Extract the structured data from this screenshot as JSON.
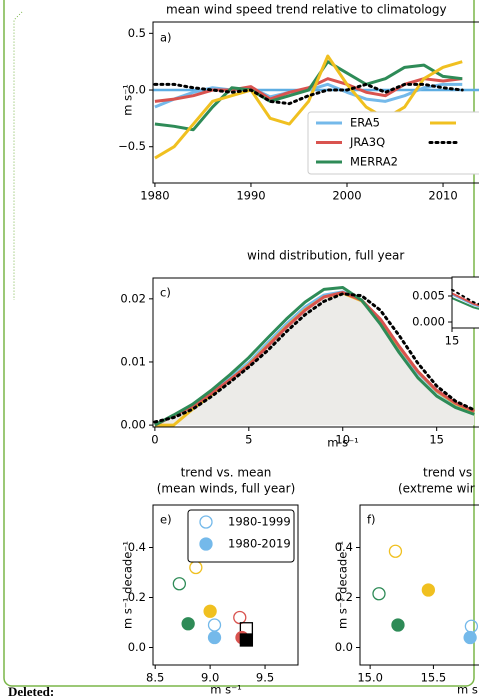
{
  "document": {
    "deleted_label": "Deleted:"
  },
  "chart_data": [
    {
      "type": "line",
      "title": [
        "mean wind speed trend relative to climatology"
      ],
      "panel_label": "a)",
      "ylabel": "m s⁻¹",
      "xlim": [
        1979.8,
        2020.2
      ],
      "ylim": [
        -0.82,
        0.6
      ],
      "xticks": [
        1980,
        1990,
        2000,
        2010
      ],
      "yticks": [
        0.5,
        {
          "value": 0,
          "label": "0.0"
        },
        {
          "value": -0.5,
          "label": "−0.5"
        }
      ],
      "hline": 0,
      "hline_color": "#5dade2",
      "x": [
        1980,
        1982,
        1984,
        1986,
        1988,
        1990,
        1992,
        1994,
        1996,
        1998,
        2000,
        2002,
        2004,
        2006,
        2008,
        2010,
        2012
      ],
      "series": [
        {
          "name": "ERA5",
          "color": "#74b9ea",
          "values": [
            -0.15,
            -0.08,
            -0.02,
            0.02,
            0.0,
            0.02,
            -0.06,
            -0.02,
            0.0,
            0.05,
            -0.02,
            -0.08,
            -0.1,
            -0.05,
            0.02,
            0.05,
            0.05
          ]
        },
        {
          "name": "JRA3Q",
          "color": "#d9534f",
          "values": [
            -0.1,
            -0.08,
            -0.05,
            0.0,
            0.0,
            0.03,
            -0.08,
            -0.02,
            0.02,
            0.1,
            0.05,
            -0.02,
            -0.05,
            0.05,
            0.1,
            0.08,
            0.1
          ]
        },
        {
          "name": "MERRA2",
          "color": "#2e8b57",
          "values": [
            -0.3,
            -0.32,
            -0.35,
            -0.15,
            0.02,
            0.0,
            -0.1,
            -0.05,
            0.0,
            0.25,
            0.15,
            0.05,
            0.1,
            0.2,
            0.22,
            0.12,
            0.1
          ]
        },
        {
          "color": "#f0c020",
          "values": [
            -0.6,
            -0.5,
            -0.3,
            -0.1,
            -0.05,
            0.0,
            -0.25,
            -0.3,
            -0.1,
            0.3,
            0.05,
            -0.15,
            -0.25,
            -0.15,
            0.1,
            0.2,
            0.25
          ]
        },
        {
          "color": "#000000",
          "dashed": true,
          "values": [
            0.05,
            0.05,
            0.02,
            0.0,
            -0.02,
            0.0,
            -0.1,
            -0.12,
            -0.05,
            0.0,
            0.0,
            0.05,
            -0.02,
            0.05,
            0.05,
            0.02,
            0.0
          ]
        }
      ]
    },
    {
      "type": "line",
      "title": [
        "wind distribution, full year"
      ],
      "panel_label": "c)",
      "xlabel": "m s⁻¹",
      "xlim": [
        -0.1,
        20.5
      ],
      "ylim": [
        -0.0003,
        0.0233
      ],
      "xticks": [
        0,
        5,
        10,
        15
      ],
      "yticks": [
        {
          "value": 0,
          "label": "0.00"
        },
        {
          "value": 0.01,
          "label": "0.01"
        },
        {
          "value": 0.02,
          "label": "0.02"
        }
      ],
      "x": [
        0,
        1,
        2,
        3,
        4,
        5,
        6,
        7,
        8,
        9,
        10,
        11,
        12,
        13,
        14,
        15,
        16,
        17
      ],
      "series": [
        {
          "color": "#ecebe8",
          "area": true,
          "values": [
            0.0,
            0.0015,
            0.003,
            0.005,
            0.0072,
            0.0095,
            0.0125,
            0.0155,
            0.0182,
            0.0203,
            0.021,
            0.0198,
            0.0168,
            0.0125,
            0.0085,
            0.0055,
            0.0035,
            0.0022
          ]
        },
        {
          "color": "#74b9ea",
          "values": [
            0.0,
            0.0015,
            0.0031,
            0.0052,
            0.0075,
            0.0099,
            0.013,
            0.016,
            0.0187,
            0.0206,
            0.0211,
            0.0197,
            0.0165,
            0.0122,
            0.0083,
            0.0053,
            0.0033,
            0.0021
          ]
        },
        {
          "color": "#f0c020",
          "values": [
            0.0,
            0.0,
            0.0025,
            0.0048,
            0.0072,
            0.0096,
            0.0126,
            0.0156,
            0.0183,
            0.0203,
            0.0209,
            0.0197,
            0.0166,
            0.0124,
            0.0085,
            0.0054,
            0.0034,
            0.0021
          ]
        },
        {
          "color": "#d9534f",
          "values": [
            0.0,
            0.0015,
            0.003,
            0.005,
            0.0072,
            0.0095,
            0.0125,
            0.0155,
            0.0182,
            0.0203,
            0.021,
            0.0198,
            0.0168,
            0.0125,
            0.0085,
            0.0055,
            0.0035,
            0.0022
          ]
        },
        {
          "color": "#2e8b57",
          "values": [
            0.0,
            0.0016,
            0.0033,
            0.0055,
            0.008,
            0.0107,
            0.0138,
            0.0168,
            0.0195,
            0.0215,
            0.0218,
            0.0198,
            0.016,
            0.0115,
            0.0075,
            0.0046,
            0.0028,
            0.0017
          ]
        },
        {
          "color": "#000000",
          "dashed": true,
          "values": [
            0.0005,
            0.0012,
            0.0025,
            0.0045,
            0.0068,
            0.0092,
            0.0118,
            0.0148,
            0.0175,
            0.0196,
            0.0208,
            0.0205,
            0.0182,
            0.0142,
            0.0098,
            0.0062,
            0.0038,
            0.0024
          ]
        }
      ]
    },
    {
      "type": "line",
      "xlim": [
        15,
        20
      ],
      "ylim": [
        -0.00115,
        0.00865
      ],
      "xticks": [
        15
      ],
      "yticks": [
        {
          "value": 0,
          "label": "0.000"
        },
        0.005
      ],
      "x": [
        15,
        16,
        17
      ],
      "series": [
        {
          "color": "#74b9ea",
          "values": [
            0.0053,
            0.0033,
            0.0021
          ]
        },
        {
          "color": "#d9534f",
          "values": [
            0.0055,
            0.0035,
            0.0022
          ]
        },
        {
          "color": "#2e8b57",
          "values": [
            0.0046,
            0.0028,
            0.0017
          ]
        },
        {
          "color": "#000000",
          "dashed": true,
          "values": [
            0.0062,
            0.0038,
            0.0024
          ]
        }
      ]
    },
    {
      "type": "scatter",
      "title": [
        "trend vs. mean",
        "(mean winds, full year)"
      ],
      "panel_label": "e)",
      "ylabel": "m s⁻¹ decade⁻¹",
      "xlabel": "m s⁻¹",
      "xlim": [
        8.48,
        9.8
      ],
      "ylim": [
        -0.07,
        0.57
      ],
      "xticks": [
        8.5,
        {
          "value": 9,
          "label": "9.0"
        },
        9.5
      ],
      "yticks": [
        {
          "value": 0,
          "label": "0.0"
        },
        0.2,
        0.4
      ],
      "legend_color": "#74b9ea",
      "series": [
        {
          "name": "1980-1999",
          "filled": false,
          "x": [
            8.72,
            8.87,
            9.04,
            9.27,
            9.33
          ],
          "values": [
            0.255,
            0.32,
            0.09,
            0.12,
            0.075
          ],
          "colors": [
            "#2e8b57",
            "#f0c020",
            "#74b9ea",
            "#d9534f",
            "#000000"
          ],
          "markers": [
            "circle",
            "circle",
            "circle",
            "circle",
            "square"
          ]
        },
        {
          "name": "1980-2019",
          "filled": true,
          "x": [
            8.8,
            9.0,
            9.04,
            9.29,
            9.33
          ],
          "values": [
            0.095,
            0.145,
            0.04,
            0.04,
            0.03
          ],
          "colors": [
            "#2e8b57",
            "#f0c020",
            "#74b9ea",
            "#d9534f",
            "#000000"
          ],
          "markers": [
            "circle",
            "circle",
            "circle",
            "circle",
            "square"
          ]
        }
      ]
    },
    {
      "type": "scatter",
      "title": [
        "trend vs",
        "(extreme wir"
      ],
      "panel_label": "f)",
      "ylabel": "m s⁻¹ decade⁻¹",
      "xlabel": "m s",
      "xlim": [
        14.92,
        16.5
      ],
      "ylim": [
        -0.07,
        0.57
      ],
      "xticks": [
        {
          "value": 15,
          "label": "15.0"
        },
        15.5
      ],
      "yticks": [
        {
          "value": 0,
          "label": "0.0"
        },
        0.2,
        0.4
      ],
      "series": [
        {
          "filled": false,
          "x": [
            15.07,
            15.2,
            15.8
          ],
          "values": [
            0.215,
            0.385,
            0.085
          ],
          "colors": [
            "#2e8b57",
            "#f0c020",
            "#74b9ea"
          ],
          "markers": [
            "circle",
            "circle",
            "circle"
          ]
        },
        {
          "filled": true,
          "x": [
            15.22,
            15.46,
            15.79
          ],
          "values": [
            0.09,
            0.23,
            0.04
          ],
          "colors": [
            "#2e8b57",
            "#f0c020",
            "#74b9ea"
          ],
          "markers": [
            "circle",
            "circle",
            "circle"
          ]
        }
      ]
    }
  ]
}
